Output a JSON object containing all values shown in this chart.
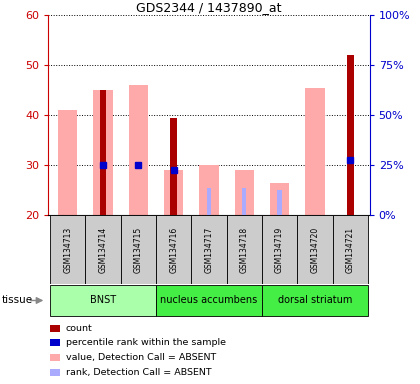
{
  "title": "GDS2344 / 1437890_at",
  "samples": [
    "GSM134713",
    "GSM134714",
    "GSM134715",
    "GSM134716",
    "GSM134717",
    "GSM134718",
    "GSM134719",
    "GSM134720",
    "GSM134721"
  ],
  "count_values": [
    null,
    45.0,
    null,
    39.5,
    null,
    null,
    null,
    null,
    52.0
  ],
  "count_color": "#aa0000",
  "pink_bar_values": [
    41.0,
    45.0,
    46.0,
    29.0,
    30.0,
    29.0,
    26.5,
    45.5,
    null
  ],
  "pink_bar_color": "#ffaaaa",
  "blue_rank_values": [
    null,
    30.0,
    30.0,
    29.0,
    null,
    null,
    null,
    null,
    31.0
  ],
  "blue_lavender_values": [
    null,
    null,
    null,
    null,
    25.5,
    25.5,
    25.0,
    null,
    null
  ],
  "blue_dot_color": "#0000cc",
  "lavender_color": "#aaaaff",
  "ylim_left": [
    20,
    60
  ],
  "ylim_right": [
    0,
    100
  ],
  "yticks_left": [
    20,
    30,
    40,
    50,
    60
  ],
  "yticks_right": [
    0,
    25,
    50,
    75,
    100
  ],
  "ytick_labels_right": [
    "0%",
    "25%",
    "50%",
    "75%",
    "100%"
  ],
  "left_axis_color": "#cc0000",
  "right_axis_color": "#0000cc",
  "tissue_label": "tissue",
  "legend_items": [
    {
      "color": "#aa0000",
      "label": "count"
    },
    {
      "color": "#0000cc",
      "label": "percentile rank within the sample"
    },
    {
      "color": "#ffaaaa",
      "label": "value, Detection Call = ABSENT"
    },
    {
      "color": "#aaaaff",
      "label": "rank, Detection Call = ABSENT"
    }
  ],
  "bar_width": 0.55,
  "x_positions": [
    0,
    1,
    2,
    3,
    4,
    5,
    6,
    7,
    8
  ],
  "tissue_groups": [
    {
      "label": "BNST",
      "start": 0,
      "end": 3,
      "color": "#aaffaa"
    },
    {
      "label": "nucleus accumbens",
      "start": 3,
      "end": 6,
      "color": "#44ee44"
    },
    {
      "label": "dorsal striatum",
      "start": 6,
      "end": 9,
      "color": "#44ee44"
    }
  ]
}
